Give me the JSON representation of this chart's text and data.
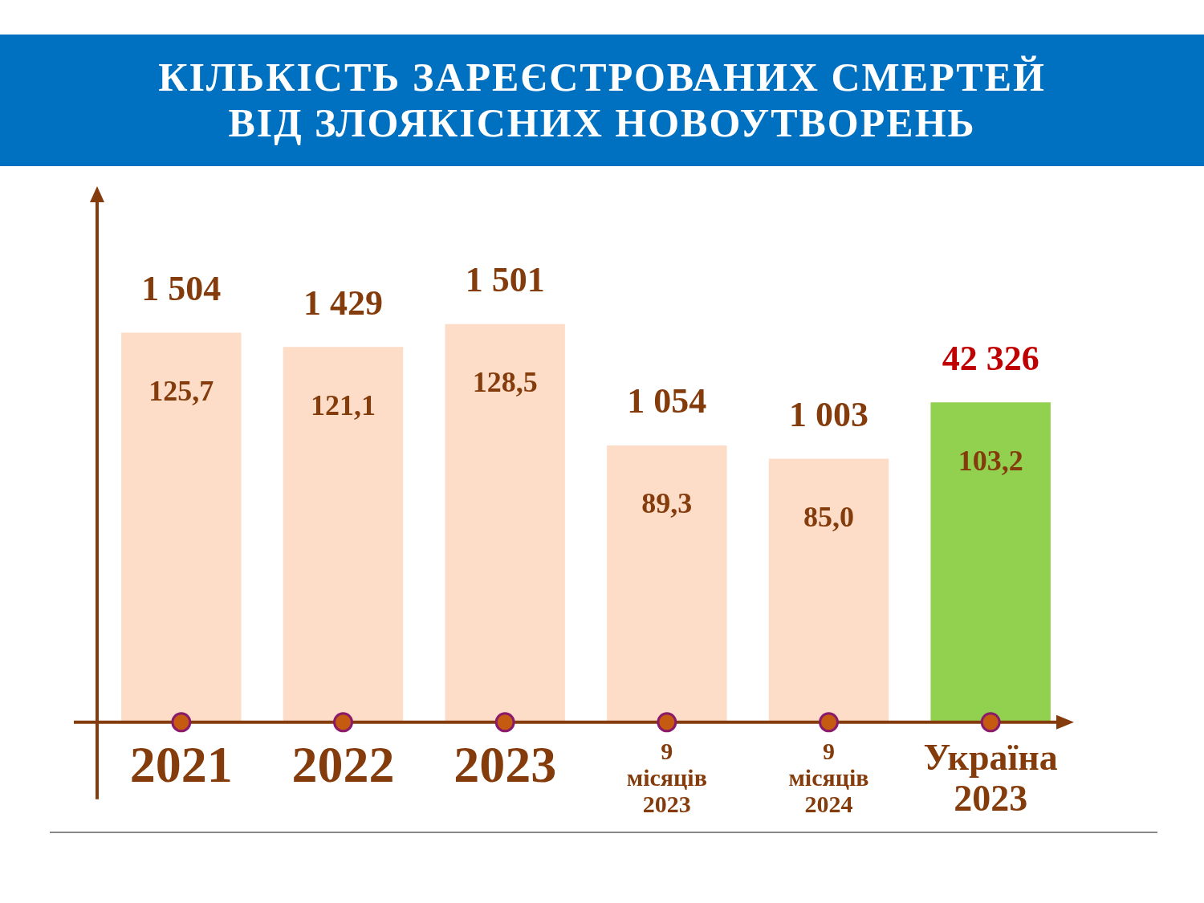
{
  "chart_data": {
    "type": "bar",
    "title": "КІЛЬКІСТЬ  ЗАРЕЄСТРОВАНИХ  СМЕРТЕЙ ВІД ЗЛОЯКІСНИХ НОВОУТВОРЕНЬ",
    "categories": [
      "2021",
      "2022",
      "2023",
      "9 місяців 2023",
      "9 місяців 2024",
      "Україна 2023"
    ],
    "values": [
      125.7,
      121.1,
      128.5,
      89.3,
      85.0,
      103.2
    ],
    "colors": [
      "#fddcc8",
      "#fddcc8",
      "#fddcc8",
      "#fddcc8",
      "#fddcc8",
      "#92d050"
    ],
    "value_labels": [
      "125,7",
      "121,1",
      "128,5",
      "89,3",
      "85,0",
      "103,2"
    ],
    "annotations": [
      {
        "text": "1 504",
        "x": "2021",
        "y": 125.7
      },
      {
        "text": "1 429",
        "x": "2022",
        "y": 121.1
      },
      {
        "text": "1 501",
        "x": "2023",
        "y": 128.5
      },
      {
        "text": "1 054",
        "x": "9 місяців 2023",
        "y": 89.3
      },
      {
        "text": "1 003",
        "x": "9 місяців 2024",
        "y": 85.0
      },
      {
        "text": "42 326",
        "x": "Україна 2023",
        "y": 103.2
      }
    ],
    "tick_labels": "x",
    "grid": false,
    "legend": false
  }
}
